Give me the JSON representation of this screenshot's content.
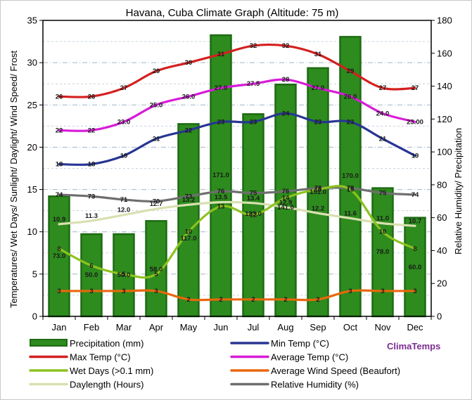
{
  "chart_data": {
    "type": "bar+line",
    "title": "Havana, Cuba Climate Graph (Altitude: 75 m)",
    "categories": [
      "Jan",
      "Feb",
      "Mar",
      "Apr",
      "May",
      "Jun",
      "Jul",
      "Aug",
      "Sep",
      "Oct",
      "Nov",
      "Dec"
    ],
    "ylabel_left": "Temperatures/ Wet Days/ Sunlight/ Daylight/ Wind Speed/ Frost",
    "ylabel_right": "Relative Humidity/ Precipitation",
    "ylim_left": [
      0,
      35
    ],
    "yticks_left": [
      "0",
      "5",
      "10",
      "15",
      "20",
      "25",
      "30",
      "35"
    ],
    "ylim_right": [
      0,
      180
    ],
    "yticks_right": [
      "0",
      "20",
      "40",
      "60",
      "80",
      "100",
      "120",
      "140",
      "160",
      "180"
    ],
    "grid": true,
    "watermark": "ClimaTemps",
    "bars": {
      "name": "Precipitation (mm)",
      "axis": "right",
      "color": "#2e8b1e",
      "values": [
        73.0,
        50.0,
        50.0,
        58.0,
        117.0,
        171.0,
        123.0,
        141.0,
        151.0,
        170.0,
        78.0,
        60.0
      ],
      "labels": [
        "73.0",
        "50.0",
        "50.0",
        "58.0",
        "117.0",
        "171.0",
        "123.0",
        "141.0",
        "151.0",
        "170.0",
        "78.0",
        "60.0"
      ]
    },
    "series": [
      {
        "name": "Max Temp (°C)",
        "axis": "left",
        "color": "#d42020",
        "values": [
          26,
          26,
          27,
          29,
          30,
          31,
          32,
          32,
          31,
          29,
          27,
          27
        ],
        "labels": [
          "26",
          "26",
          "27",
          "29",
          "30",
          "31",
          "32",
          "32",
          "31",
          "29",
          "27",
          "27"
        ]
      },
      {
        "name": "Min Temp (°C)",
        "axis": "left",
        "color": "#283593",
        "values": [
          18,
          18,
          19,
          21,
          22,
          23,
          23,
          24,
          23,
          23,
          21,
          19
        ],
        "labels": [
          "18",
          "18",
          "19",
          "21",
          "22",
          "23",
          "23",
          "24",
          "23",
          "23",
          "21",
          "19"
        ]
      },
      {
        "name": "Average Temp (°C)",
        "axis": "left",
        "color": "#d81bd8",
        "values": [
          22.0,
          22.0,
          23.0,
          25.0,
          26.0,
          27.0,
          27.5,
          28.0,
          27.0,
          26.0,
          24.0,
          23.0
        ],
        "labels": [
          "22",
          "22",
          "23.0",
          "25.0",
          "26.0",
          "27.0",
          "27.5",
          "28",
          "27.0",
          "26.0",
          "24.0",
          "23.00"
        ]
      },
      {
        "name": "Wet Days (>0.1 mm)",
        "axis": "left",
        "color": "#8dc21f",
        "values": [
          8,
          6,
          5,
          5,
          10,
          13,
          12,
          14,
          15,
          15,
          10,
          8
        ],
        "labels": [
          "8",
          "6",
          "5",
          "5",
          "10",
          "13",
          "12",
          "14",
          "15",
          "15",
          "10",
          "8"
        ]
      },
      {
        "name": "Average Wind Speed (Beaufort)",
        "axis": "left",
        "color": "#e8670c",
        "values": [
          3,
          3,
          3,
          3,
          2,
          2,
          2,
          2,
          2,
          3,
          3,
          3
        ],
        "labels": [
          "3",
          "3",
          "3",
          "3",
          "2",
          "2",
          "2",
          "2",
          "2",
          "3",
          "3",
          "3"
        ]
      },
      {
        "name": "Daylength (Hours)",
        "axis": "left",
        "color": "#d8e0b0",
        "values": [
          10.9,
          11.3,
          12.0,
          12.7,
          13.2,
          13.5,
          13.4,
          12.9,
          12.2,
          11.6,
          11.0,
          10.7
        ],
        "labels": [
          "10.9",
          "11.3",
          "12.0",
          "12.7",
          "13.2",
          "13.5",
          "13.4",
          "12.9",
          "12.2",
          "11.6",
          "11.0",
          "10.7"
        ]
      },
      {
        "name": "Relative Humidity (%)",
        "axis": "right",
        "color": "#6e6e6e",
        "values": [
          74,
          73,
          71,
          70,
          73,
          76,
          75,
          76,
          78,
          78,
          75,
          74
        ],
        "labels": [
          "74",
          "73",
          "71",
          "70",
          "73",
          "76",
          "75",
          "76",
          "78",
          "78",
          "75",
          "74"
        ]
      }
    ]
  }
}
